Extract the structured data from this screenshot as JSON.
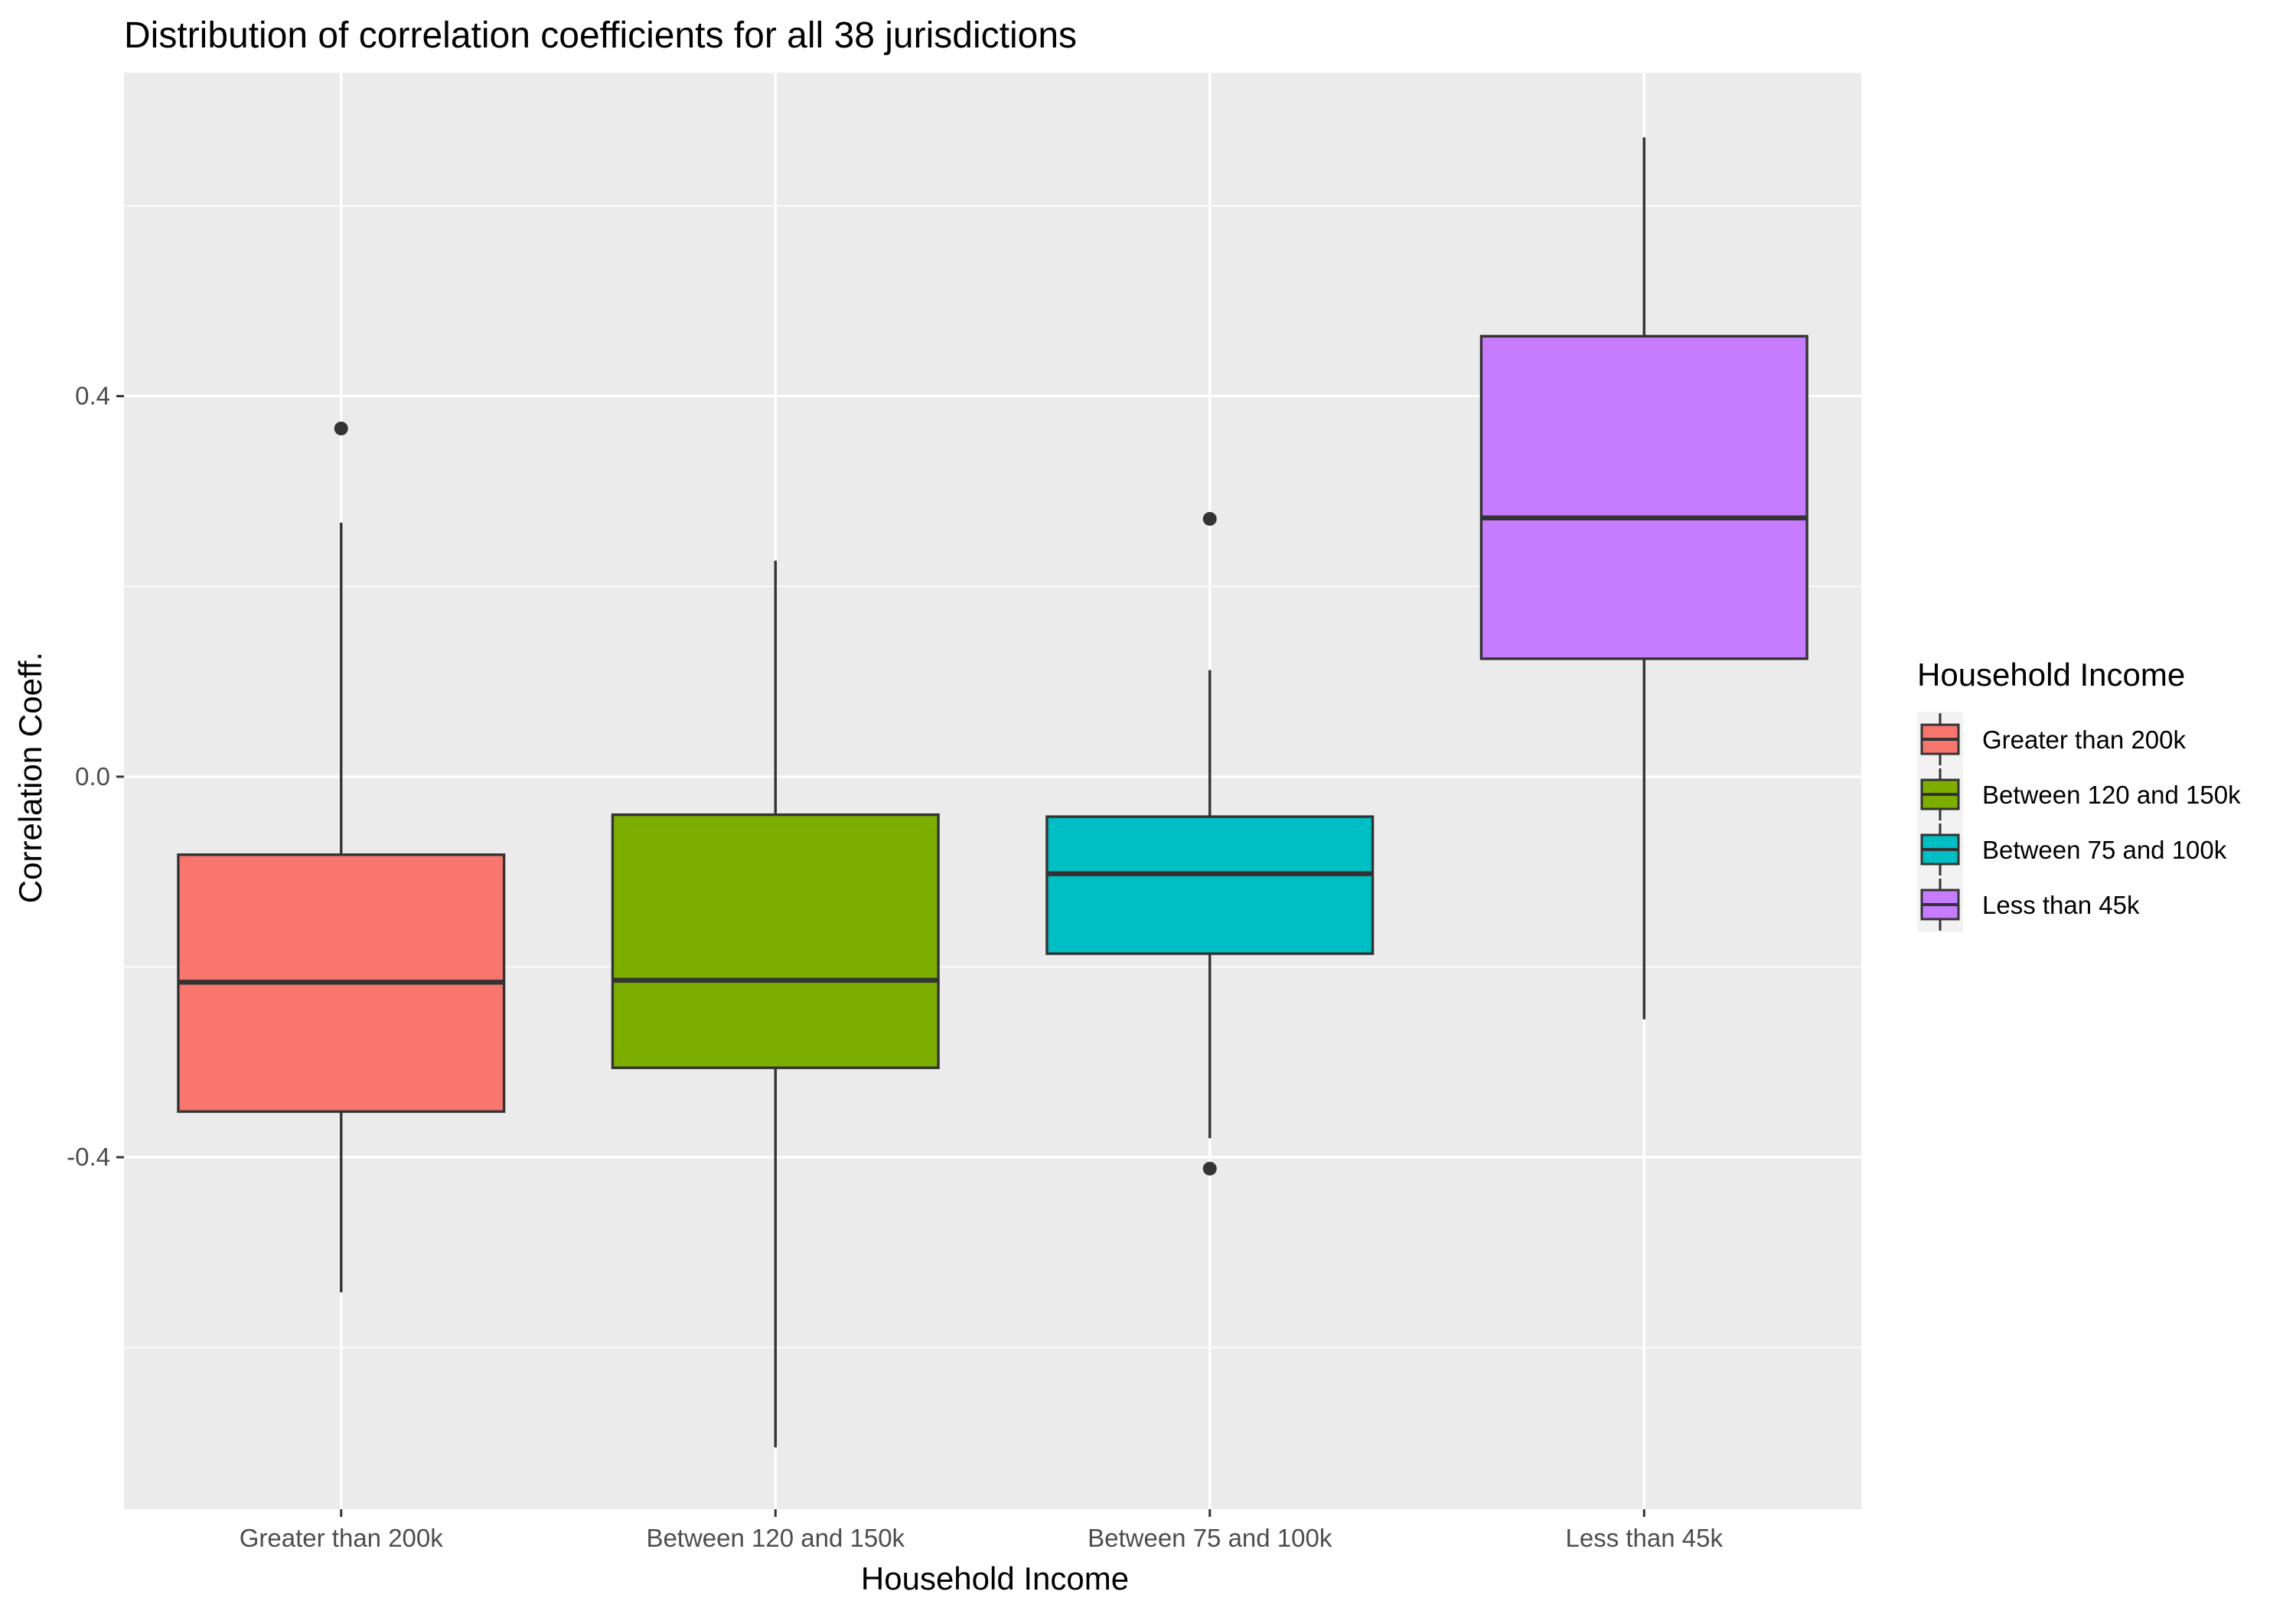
{
  "chart_data": {
    "type": "box",
    "title": "Distribution of correlation coefficients for all 38 jurisdictions",
    "xlabel": "Household Income",
    "ylabel": "Correlation Coeff.",
    "ylim": [
      -0.77,
      0.74
    ],
    "y_ticks": [
      -0.4,
      0.0,
      0.4
    ],
    "y_tick_labels": [
      "-0.4",
      "0.0",
      "0.4"
    ],
    "y_minor_ticks": [
      -0.6,
      -0.2,
      0.2,
      0.6
    ],
    "categories": [
      "Greater than 200k",
      "Between 120 and 150k",
      "Between 75 and 100k",
      "Less than 45k"
    ],
    "series": [
      {
        "category": "Greater than 200k",
        "color": "#F8766D",
        "min": -0.542,
        "q1": -0.352,
        "median": -0.216,
        "q3": -0.082,
        "max": 0.267,
        "outliers": [
          0.366
        ]
      },
      {
        "category": "Between 120 and 150k",
        "color": "#7CAE00",
        "min": -0.705,
        "q1": -0.306,
        "median": -0.214,
        "q3": -0.04,
        "max": 0.227,
        "outliers": []
      },
      {
        "category": "Between 75 and 100k",
        "color": "#00BFC4",
        "min": -0.38,
        "q1": -0.186,
        "median": -0.102,
        "q3": -0.042,
        "max": 0.112,
        "outliers": [
          0.271,
          -0.412
        ]
      },
      {
        "category": "Less than 45k",
        "color": "#C77CFF",
        "min": -0.255,
        "q1": 0.124,
        "median": 0.272,
        "q3": 0.463,
        "max": 0.672,
        "outliers": []
      }
    ],
    "grid": true,
    "panel_background": "#EBEBEB",
    "grid_color": "#FFFFFF",
    "legend": {
      "title": "Household Income",
      "position": "right",
      "entries": [
        "Greater than 200k",
        "Between 120 and 150k",
        "Between 75 and 100k",
        "Less than 45k"
      ]
    }
  }
}
